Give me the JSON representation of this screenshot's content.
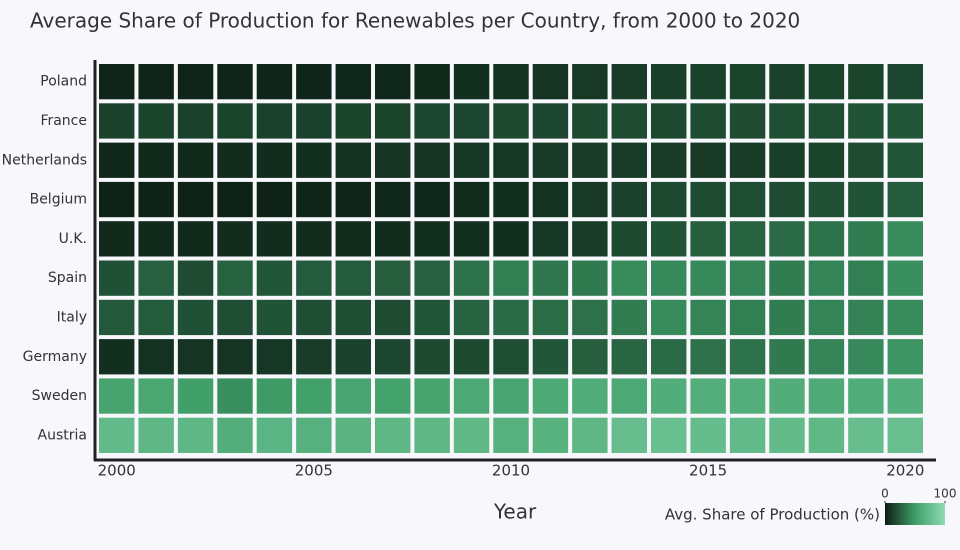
{
  "chart_data": {
    "type": "heatmap",
    "title": "Average Share of Production for Renewables per Country, from 2000 to 2020",
    "x_label": "Year",
    "x": [
      2000,
      2001,
      2002,
      2003,
      2004,
      2005,
      2006,
      2007,
      2008,
      2009,
      2010,
      2011,
      2012,
      2013,
      2014,
      2015,
      2016,
      2017,
      2018,
      2019,
      2020
    ],
    "xlim": [
      1999.5,
      2020.5
    ],
    "xticks": [
      2000,
      2005,
      2010,
      2015,
      2020
    ],
    "categories": [
      "Poland",
      "France",
      "Netherlands",
      "Belgium",
      "U.K.",
      "Spain",
      "Italy",
      "Germany",
      "Sweden",
      "Austria"
    ],
    "values": [
      [
        3,
        3,
        3,
        3,
        3,
        3,
        4,
        4,
        5,
        7,
        8,
        9,
        11,
        12,
        13,
        14,
        15,
        14,
        15,
        15,
        16
      ],
      [
        14,
        15,
        14,
        15,
        14,
        14,
        15,
        15,
        16,
        16,
        17,
        16,
        17,
        18,
        17,
        18,
        18,
        19,
        19,
        21,
        22
      ],
      [
        4,
        5,
        5,
        6,
        6,
        7,
        8,
        9,
        9,
        10,
        10,
        11,
        12,
        12,
        12,
        11,
        12,
        13,
        15,
        18,
        22
      ],
      [
        2,
        2,
        2,
        2,
        2,
        3,
        3,
        4,
        4,
        6,
        7,
        8,
        11,
        14,
        17,
        18,
        19,
        18,
        20,
        21,
        24
      ],
      [
        5,
        5,
        5,
        6,
        6,
        6,
        6,
        6,
        7,
        7,
        7,
        10,
        12,
        17,
        21,
        25,
        27,
        30,
        33,
        37,
        43
      ],
      [
        20,
        26,
        18,
        27,
        22,
        24,
        24,
        25,
        26,
        33,
        38,
        35,
        36,
        43,
        42,
        42,
        40,
        37,
        40,
        38,
        44
      ],
      [
        23,
        24,
        20,
        19,
        21,
        19,
        19,
        18,
        22,
        27,
        30,
        31,
        32,
        37,
        43,
        40,
        38,
        37,
        40,
        39,
        43
      ],
      [
        7,
        8,
        9,
        9,
        10,
        12,
        14,
        16,
        17,
        17,
        19,
        22,
        25,
        28,
        30,
        32,
        33,
        36,
        40,
        42,
        46
      ],
      [
        55,
        57,
        51,
        44,
        49,
        52,
        56,
        53,
        55,
        58,
        56,
        59,
        61,
        58,
        62,
        63,
        63,
        62,
        60,
        61,
        64
      ],
      [
        72,
        70,
        70,
        63,
        68,
        65,
        67,
        70,
        70,
        71,
        65,
        66,
        70,
        75,
        77,
        74,
        72,
        73,
        71,
        75,
        76
      ]
    ],
    "colorscale": [
      [
        0,
        "#0c1d14"
      ],
      [
        0.5,
        "#3f9e68"
      ],
      [
        1,
        "#8edcb2"
      ]
    ],
    "zlim": [
      0,
      100
    ],
    "colorbar_title": "Avg. Share of Production (%)",
    "colorbar_ticks": [
      0,
      100
    ]
  }
}
